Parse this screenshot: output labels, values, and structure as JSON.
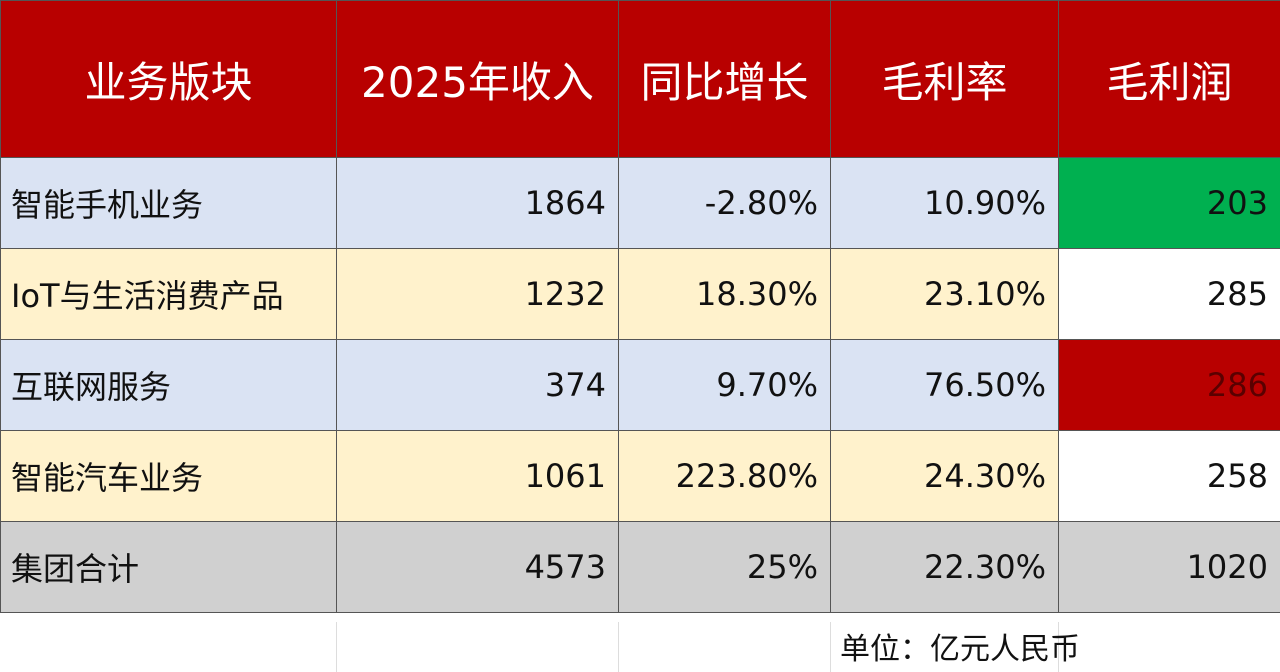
{
  "table": {
    "header": [
      "业务版块",
      "2025年收入",
      "同比增长",
      "毛利率",
      "毛利润"
    ],
    "rows": [
      [
        "智能手机业务",
        "1864",
        "-2.80%",
        "10.90%",
        "203"
      ],
      [
        "IoT与生活消费产品",
        "1232",
        "18.30%",
        "23.10%",
        "285"
      ],
      [
        "互联网服务",
        "374",
        "9.70%",
        "76.50%",
        "286"
      ],
      [
        "智能汽车业务",
        "1061",
        "223.80%",
        "24.30%",
        "258"
      ],
      [
        "集团合计",
        "4573",
        "25%",
        "22.30%",
        "1020"
      ]
    ]
  },
  "note": "单位：亿元人民币"
}
